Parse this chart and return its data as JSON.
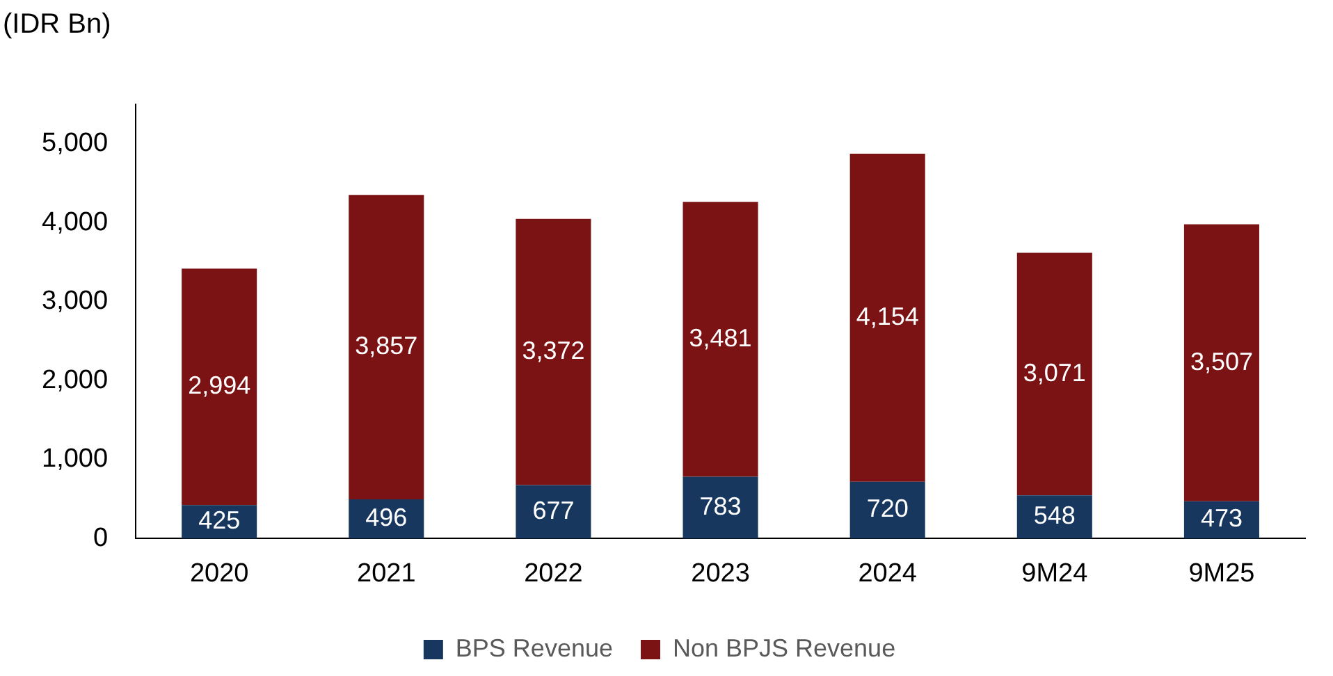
{
  "chart_data": {
    "type": "bar",
    "ylabel": "(IDR Bn)",
    "stacked": true,
    "categories": [
      "2020",
      "2021",
      "2022",
      "2023",
      "2024",
      "9M24",
      "9M25"
    ],
    "series": [
      {
        "name": "BPS Revenue",
        "color": "#17375e",
        "values": [
          425,
          496,
          677,
          783,
          720,
          548,
          473
        ],
        "value_labels": [
          "425",
          "496",
          "677",
          "783",
          "720",
          "548",
          "473"
        ]
      },
      {
        "name": "Non BPJS Revenue",
        "color": "#7b1214",
        "values": [
          2994,
          3857,
          3372,
          3481,
          4154,
          3071,
          3507
        ],
        "value_labels": [
          "2,994",
          "3,857",
          "3,372",
          "3,481",
          "4,154",
          "3,071",
          "3,507"
        ]
      }
    ],
    "ylim": [
      0,
      5500
    ],
    "yticks": [
      0,
      {
        "value": 1000,
        "label": "1,000"
      },
      {
        "value": 2000,
        "label": "2,000"
      },
      {
        "value": 3000,
        "label": "3,000"
      },
      {
        "value": 4000,
        "label": "4,000"
      },
      {
        "value": 5000,
        "label": "5,000"
      }
    ],
    "grid": false,
    "legend": "bottom"
  }
}
